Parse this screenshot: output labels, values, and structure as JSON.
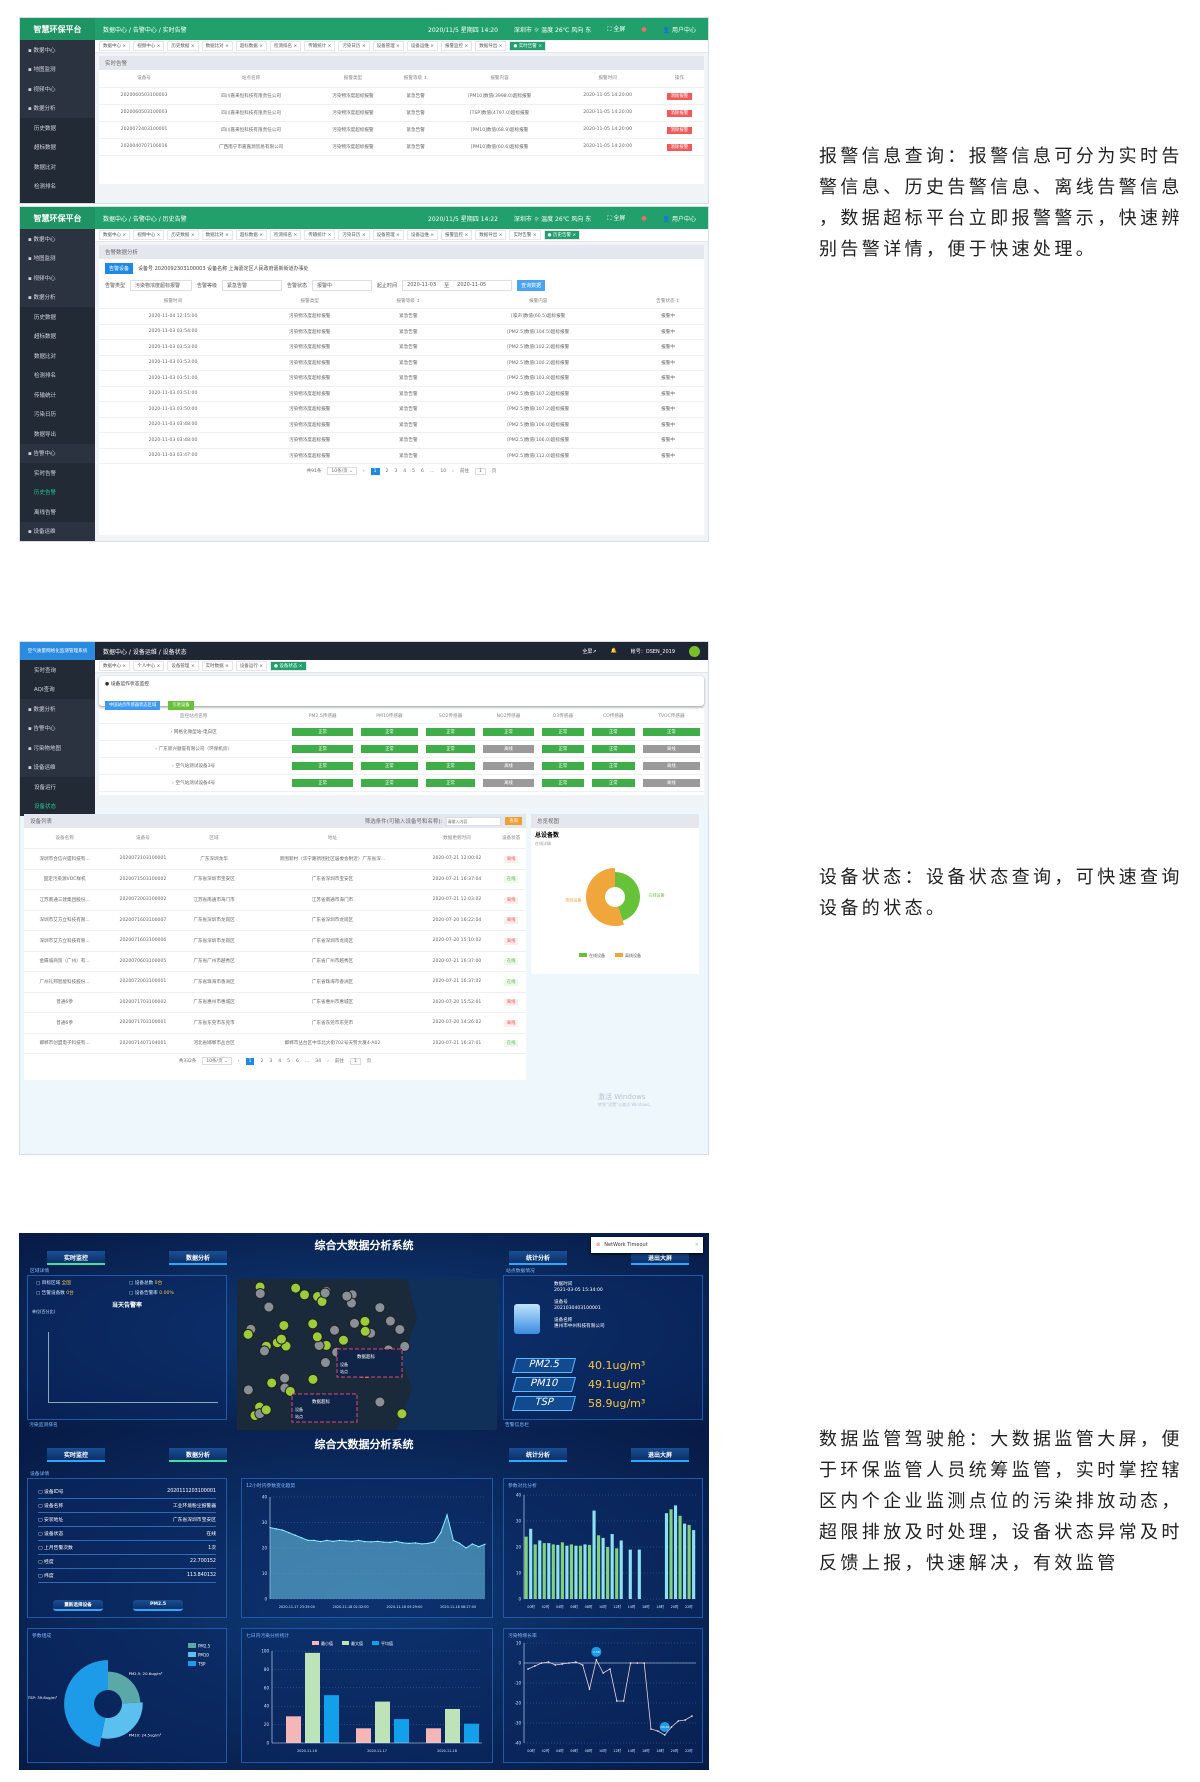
{
  "doc": {
    "alarm_text": [
      "报警信息查询：报警信息可分为实时告",
      "警信息、历史告警信息、离线告警信息",
      "，数据超标平台立即报警警示，快速辨",
      "别告警详情，便于快速处理。"
    ],
    "status_text": [
      "设备状态：设备状态查询，可快速查询",
      "设备的状态。"
    ],
    "cockpit_text": [
      "数据监管驾驶舱：大数据监管大屏，便",
      "于环保监管人员统筹监管，实时掌控辖",
      "区内个企业监测点位的污染排放动态，",
      "超限排放及时处理，设备状态异常及时",
      "反馈上报，快速解决，有效监管"
    ]
  },
  "alarm_rt": {
    "logo": "智慧环保平台",
    "breadcrumb": "数据中心 / 告警中心 / 实时告警",
    "date": "2020/11/5 星期四 14:20",
    "weather": "深圳市 ☼ 温度 26℃ 风向 东",
    "fullscreen": "全屏",
    "user": "用户中心",
    "sidebar": [
      {
        "label": "数据中心"
      },
      {
        "label": "地图监测"
      },
      {
        "label": "视频中心"
      },
      {
        "label": "数据分析"
      },
      {
        "label": "历史数据",
        "sub": true
      },
      {
        "label": "超标数据",
        "sub": true
      },
      {
        "label": "数据比对",
        "sub": true
      },
      {
        "label": "检测排名",
        "sub": true
      },
      {
        "label": "传输统计",
        "sub": true
      }
    ],
    "tabs": [
      "数据中心",
      "视频中心",
      "历史数据",
      "数据比对",
      "超标数据",
      "检测排名",
      "传输统计",
      "污染日历",
      "设备管理",
      "设备运维",
      "报警监控",
      "数据导出",
      "实时告警"
    ],
    "section_title": "实时告警",
    "columns": [
      "设备号",
      "站点名称",
      "报警类型",
      "报警等级 ↕",
      "报警内容",
      "报警时间",
      "操作"
    ],
    "rows": [
      [
        "2020060503100003",
        "四川嘉来恒科技有限责任公司",
        "污染物浓度超标报警",
        "紧急告警",
        "[PM10]数值(3998.0)超标报警",
        "2020-11-05 14:20:00",
        "消除报警"
      ],
      [
        "2020060503100003",
        "四川嘉来恒科技有限责任公司",
        "污染物浓度超标报警",
        "紧急告警",
        "[TSP]数值(4797.0)超标报警",
        "2020-11-05 14:20:00",
        "消除报警"
      ],
      [
        "2020072403100001",
        "四川嘉来恒科技有限责任公司",
        "污染物浓度超标报警",
        "紧急告警",
        "[PM10]数值(68.9)超标报警",
        "2020-11-05 14:20:00",
        "消除报警"
      ],
      [
        "2020040707100016",
        "广西南宁市嘉嘉源贸易有限公司",
        "污染物浓度超标报警",
        "紧急告警",
        "[PM10]数值(60.6)超标报警",
        "2020-11-05 14:20:00",
        "消除报警"
      ]
    ],
    "colors": {
      "brand": "#22a06b",
      "sidebar": "#2b3340",
      "danger": "#f05a5a"
    }
  },
  "alarm_hist": {
    "logo": "智慧环保平台",
    "breadcrumb": "数据中心 / 告警中心 / 历史告警",
    "date": "2020/11/5 星期四 14:22",
    "weather": "深圳市 ☼ 温度 26℃ 风向 东",
    "fullscreen": "全屏",
    "user": "用户中心",
    "sidebar": [
      {
        "label": "数据中心"
      },
      {
        "label": "地图监测"
      },
      {
        "label": "视频中心"
      },
      {
        "label": "数据分析"
      },
      {
        "label": "历史数据",
        "sub": true
      },
      {
        "label": "超标数据",
        "sub": true
      },
      {
        "label": "数据比对",
        "sub": true
      },
      {
        "label": "检测排名",
        "sub": true
      },
      {
        "label": "传输统计",
        "sub": true
      },
      {
        "label": "污染日历",
        "sub": true
      },
      {
        "label": "数据导出",
        "sub": true
      },
      {
        "label": "告警中心"
      },
      {
        "label": "实时告警",
        "sub": true
      },
      {
        "label": "历史告警",
        "sub": true,
        "active": true
      },
      {
        "label": "离线告警",
        "sub": true
      },
      {
        "label": "设备运维"
      },
      {
        "label": "日志管理"
      }
    ],
    "tabs": [
      "数据中心",
      "视频中心",
      "历史数据",
      "数据比对",
      "超标数据",
      "检测排名",
      "传输统计",
      "污染日历",
      "设备管理",
      "设备运维",
      "报警监控",
      "数据导出",
      "实时告警",
      "历史告警"
    ],
    "section_title": "告警数据分析",
    "device_button": "告警设备",
    "device_info": "设备号 2020092303100003  设备名称 上海嘉定区人民政府嘉新街道办事处",
    "filters": {
      "type_label": "告警类型",
      "type_value": "污染物浓度超标报警",
      "level_label": "告警等级",
      "level_value": "紧急告警",
      "status_label": "告警状态",
      "status_value": "报警中",
      "range_label": "起止时间",
      "start": "2020-11-03",
      "to": "至",
      "end": "2020-11-05",
      "query": "查询数据"
    },
    "columns": [
      "报警时间",
      "报警类型",
      "报警等级 ↕",
      "报警内容",
      "告警状态 ↕"
    ],
    "rows": [
      [
        "2020-11-04 12:15:00",
        "污染物浓度超标报警",
        "紧急告警",
        "[噪声]数值(60.5)超标报警",
        "报警中"
      ],
      [
        "2020-11-03 03:54:00",
        "污染物浓度超标报警",
        "紧急告警",
        "[PM2.5]数值(104.5)超标报警",
        "报警中"
      ],
      [
        "2020-11-03 03:53:00",
        "污染物浓度超标报警",
        "紧急告警",
        "[PM2.5]数值(102.2)超标报警",
        "报警中"
      ],
      [
        "2020-11-03 03:53:00",
        "污染物浓度超标报警",
        "紧急告警",
        "[PM2.5]数值(100.2)超标报警",
        "报警中"
      ],
      [
        "2020-11-03 03:51:00",
        "污染物浓度超标报警",
        "紧急告警",
        "[PM2.5]数值(103.8)超标报警",
        "报警中"
      ],
      [
        "2020-11-03 03:51:00",
        "污染物浓度超标报警",
        "紧急告警",
        "[PM2.5]数值(107.2)超标报警",
        "报警中"
      ],
      [
        "2020-11-03 03:50:00",
        "污染物浓度超标报警",
        "紧急告警",
        "[PM2.5]数值(107.2)超标报警",
        "报警中"
      ],
      [
        "2020-11-03 03:48:00",
        "污染物浓度超标报警",
        "紧急告警",
        "[PM2.5]数值(106.0)超标报警",
        "报警中"
      ],
      [
        "2020-11-03 03:48:00",
        "污染物浓度超标报警",
        "紧急告警",
        "[PM2.5]数值(106.0)超标报警",
        "报警中"
      ],
      [
        "2020-11-03 03:47:00",
        "污染物浓度超标报警",
        "紧急告警",
        "[PM2.5]数值(112.0)超标报警",
        "报警中"
      ]
    ],
    "pager": {
      "total": "共91条",
      "size": "10条/页",
      "pages": [
        "‹",
        "1",
        "2",
        "3",
        "4",
        "5",
        "6",
        "…",
        "10",
        "›"
      ],
      "current": "1",
      "goto": "前往",
      "goto_value": "1",
      "page_unit": "页"
    }
  },
  "device_status": {
    "logo": "空气质量网格化监测管理系统",
    "breadcrumb": "数据中心 / 设备运维 / 设备状态",
    "fullscreen": "全屏↗",
    "account": "帐号：OSEN_2019",
    "sidebar": [
      {
        "label": "实时查询",
        "sub": true
      },
      {
        "label": "AQI查询",
        "sub": true
      },
      {
        "label": "数据分析"
      },
      {
        "label": "告警中心"
      },
      {
        "label": "污染物地图"
      },
      {
        "label": "设备运维"
      },
      {
        "label": "设备运行",
        "sub": true
      },
      {
        "label": "设备状态",
        "sub": true,
        "active": true
      }
    ],
    "tabs": [
      "数据中心",
      "个人中心",
      "设备管理",
      "实时数据",
      "设备运行",
      "设备状态"
    ],
    "monitor_title": "设备运作状态监控",
    "btn_region": "中国站点传感器状态区域",
    "btn_devices": "引进设备",
    "sensor_columns": [
      "监控站点名称",
      "PM2.5传感器",
      "PM10传感器",
      "SO2传感器",
      "NO2传感器",
      "O3传感器",
      "CO传感器",
      "TVOC传感器"
    ],
    "sensor_rows": [
      {
        "name": "网格化微型站-电白区",
        "states": [
          "正常",
          "正常",
          "正常",
          "正常",
          "正常",
          "正常",
          "正常"
        ]
      },
      {
        "name": "广东新兴顺誉有限公司（环保机房）",
        "states": [
          "正常",
          "正常",
          "正常",
          "离线",
          "正常",
          "正常",
          "离线"
        ]
      },
      {
        "name": "空气站测试设备3号",
        "states": [
          "正常",
          "正常",
          "正常",
          "离线",
          "正常",
          "正常",
          "离线"
        ]
      },
      {
        "name": "空气站测试设备4号",
        "states": [
          "正常",
          "正常",
          "正常",
          "离线",
          "正常",
          "正常",
          "离线"
        ]
      }
    ],
    "list_title": "设备列表",
    "filter_label": "筛选条件(可输入设备号和名称):",
    "filter_placeholder": "请输入内容",
    "query": "查询",
    "list_columns": [
      "设备名称",
      "设备号",
      "区域",
      "地址",
      "数据更新时间",
      "设备状态"
    ],
    "list_rows": [
      [
        "深圳市合信兴盛科技有...",
        "2020072103100001",
        "广东深圳龙华",
        "新围新村（华宁路新围社区居委会附近）广东省深...",
        "2020-07-21 12:00:02",
        "离线"
      ],
      [
        "固定污染源VOC样机",
        "2020071503100002",
        "广东省深圳市宝安区",
        "广东省深圳市宝安区",
        "2020-07-21 16:37:04",
        "在线"
      ],
      [
        "江苏南通三建集团股份...",
        "2020072003100002",
        "江苏省南通市海门市",
        "江苏省南通市海门市",
        "2020-07-21 12:03:02",
        "离线"
      ],
      [
        "深圳市艾方立科技有限...",
        "2020071603100007",
        "广东省深圳市龙岗区",
        "广东省深圳市龙岗区",
        "2020-07-20 16:22:04",
        "离线"
      ],
      [
        "深圳市艾方立科技有限...",
        "2020071603100006",
        "广东省深圳市龙岗区",
        "广东省深圳市龙岗区",
        "2020-07-20 15:10:02",
        "离线"
      ],
      [
        "金蝶诚商贸（广州）有...",
        "2020070603100005",
        "广东省广州市越秀区",
        "广东省广州市越秀区",
        "2020-07-21 16:37:00",
        "在线"
      ],
      [
        "广州礼邦智能科技股份...",
        "2020072003100001",
        "广东省珠海市香洲区",
        "广东省珠海市香洲区",
        "2020-07-21 16:37:02",
        "在线"
      ],
      [
        "普通6参",
        "2020071703100002",
        "广东省惠州市惠城区",
        "广东省惠州市惠城区",
        "2020-07-20 15:52:01",
        "离线"
      ],
      [
        "普通6参",
        "2020071703100001",
        "广东省东莞市东莞市",
        "广东省东莞市东莞市",
        "2020-07-20 14:26:02",
        "离线"
      ],
      [
        "邯郸市创盟电子科技有...",
        "2020071407104001",
        "河北省邯郸市丛台区",
        "邯郸市丛台区中华北大街702号天赞大厦4-A02",
        "2020-07-21 16:37:01",
        "在线"
      ]
    ],
    "pager": {
      "total": "共332条",
      "size": "10条/页",
      "pages": [
        "‹",
        "1",
        "2",
        "3",
        "4",
        "5",
        "6",
        "…",
        "34",
        "›"
      ],
      "current": "1",
      "goto": "前往",
      "goto_value": "1",
      "page_unit": "页"
    },
    "overview_title": "总览视图",
    "total_title": "总设备数",
    "total_sub": "在线详情",
    "donut": {
      "slices": [
        {
          "label": "在线设备",
          "percent": 45,
          "color": "#67c23a"
        },
        {
          "label": "离线设备",
          "percent": 55,
          "color": "#f0a63a"
        }
      ]
    },
    "watermark": [
      "激活 Windows",
      "转到“设置”以激活 Windows。"
    ]
  },
  "dashboard": {
    "title": "综合大数据分析系统",
    "buttons": [
      "实时监控",
      "数据分析",
      "统计分析",
      "退出大屏"
    ],
    "toast": "NetWork Timeout",
    "region": {
      "title": "区域详情",
      "items": [
        [
          "目标区域",
          "全国"
        ],
        [
          "设备总数",
          "0台"
        ],
        [
          "告警设备数",
          "0台"
        ],
        [
          "设备告警率",
          "0.00%"
        ]
      ],
      "chart_title": "当天告警率",
      "unit": "单位(百分比)"
    },
    "site": {
      "title": "站点数据情况",
      "time_label": "数据时间",
      "time": "2021-03-05 15:34:00",
      "id_label": "设备号",
      "id": "2021030403100001",
      "name_label": "设备名称",
      "name": "惠州市中州科技有限公司",
      "readings": [
        [
          "PM2.5",
          "40.1ug/m³"
        ],
        [
          "PM10",
          "49.1ug/m³"
        ],
        [
          "TSP",
          "58.9ug/m³"
        ]
      ]
    },
    "map_popup": {
      "title": "数据超标",
      "device_label": "设备",
      "site_label": "站点"
    },
    "bottom_labels": [
      "污染监测排名",
      "告警信息栏"
    ],
    "detail": {
      "title": "设备详情",
      "items": [
        [
          "设备ID号",
          "2020111203100001"
        ],
        [
          "设备名称",
          "工业环境粉尘报警器"
        ],
        [
          "安装地址",
          "广东省深圳市宝安区"
        ],
        [
          "设备状态",
          "在线"
        ],
        [
          "上月告警次数",
          "1次"
        ],
        [
          "经度",
          "22.700152"
        ],
        [
          "纬度",
          "113.840132"
        ]
      ],
      "reselect": "重新选择设备",
      "param": "PM2.5"
    },
    "chart_data": [
      {
        "type": "area",
        "title": "12小时内参数变化趋势",
        "ylim": [
          0,
          40
        ],
        "yticks": [
          0,
          10,
          20,
          30,
          40
        ],
        "xticks": [
          "2020-11-17 23:35:00",
          "2020-11-18 02:32:00",
          "2020-11-18 05:29:00",
          "2020-11-18 08:27:00"
        ],
        "values": [
          28,
          27.5,
          27,
          26,
          25,
          24,
          23,
          23,
          22.5,
          23,
          22.6,
          23,
          22.8,
          22.6,
          23,
          22.5,
          22.4,
          22.6,
          22.3,
          22.2,
          22.6,
          22,
          21.8,
          22,
          21.6,
          21.8,
          22.4,
          26,
          33,
          23,
          21.8,
          20,
          21.6,
          20.5,
          21.5
        ]
      },
      {
        "type": "bar",
        "title": "参数对比分析",
        "ylim": [
          0,
          40
        ],
        "yticks": [
          0,
          10,
          20,
          30,
          40
        ],
        "xticks": [
          "00时",
          "02时",
          "04时",
          "06时",
          "08时",
          "10时",
          "12时",
          "14时",
          "16时",
          "18时",
          "20时",
          "22时"
        ],
        "values": [
          24,
          27,
          21,
          22.5,
          21.5,
          21.5,
          21,
          20.8,
          21.8,
          20.5,
          21,
          20.5,
          20.5,
          21,
          20.8,
          34,
          24.5,
          23.5,
          20,
          25,
          19.5,
          22.5,
          0,
          19,
          0,
          19,
          0,
          0,
          0,
          0,
          0,
          33,
          34.5,
          36,
          32,
          29,
          28.5,
          26.5
        ],
        "colors": [
          "#7fd47a",
          "#8fe0f0"
        ]
      },
      {
        "type": "pie",
        "title": "参数组成",
        "slices": [
          {
            "label": "PM2.5",
            "value": 20.6,
            "text": "PM2.5: 20.6ug/m³",
            "color": "#5aa8a8"
          },
          {
            "label": "PM10",
            "value": 24.5,
            "text": "PM10: 24.5ug/m³",
            "color": "#5bc0f0"
          },
          {
            "label": "TSP",
            "value": 39.8,
            "text": "TSP: 39.8ug/m³",
            "color": "#1e9be8"
          }
        ]
      },
      {
        "type": "bar",
        "title": "七日内污染分析统计",
        "ylim": [
          0,
          100
        ],
        "yticks": [
          0,
          20,
          40,
          60,
          80,
          100
        ],
        "categories": [
          "2020-11-16",
          "2020-11-17",
          "2020-11-18"
        ],
        "series": [
          {
            "name": "最小值",
            "values": [
              29,
              16,
              16
            ],
            "color": "#f4b6b6"
          },
          {
            "name": "最大值",
            "values": [
              98,
              45,
              37
            ],
            "color": "#bfe3b8"
          },
          {
            "name": "平均值",
            "values": [
              52,
              26,
              21
            ],
            "color": "#12a0ea"
          }
        ]
      },
      {
        "type": "line",
        "title": "污染物增长率",
        "ylim": [
          -40,
          10
        ],
        "yticks": [
          10,
          0,
          -10,
          -20,
          -30,
          -40
        ],
        "xticks": [
          "00时",
          "02时",
          "04时",
          "06时",
          "08时",
          "10时",
          "12时",
          "14时",
          "16时",
          "18时",
          "20时",
          "22时"
        ],
        "values": [
          -3,
          -1.5,
          0,
          0.5,
          -1,
          -0.5,
          0,
          0.5,
          -1,
          -13,
          1.58,
          -5,
          -3,
          -19,
          -19,
          0,
          0,
          0,
          -33,
          -34,
          -36,
          -32,
          -29,
          -28.5,
          -26.5
        ],
        "markers": [
          {
            "index": 10,
            "label": "1.58"
          },
          {
            "index": 20,
            "label": "-36.00"
          }
        ]
      }
    ],
    "colors": {
      "bg": "#071a45",
      "accent": "#2aa7ff",
      "value": "#f5c842"
    }
  }
}
